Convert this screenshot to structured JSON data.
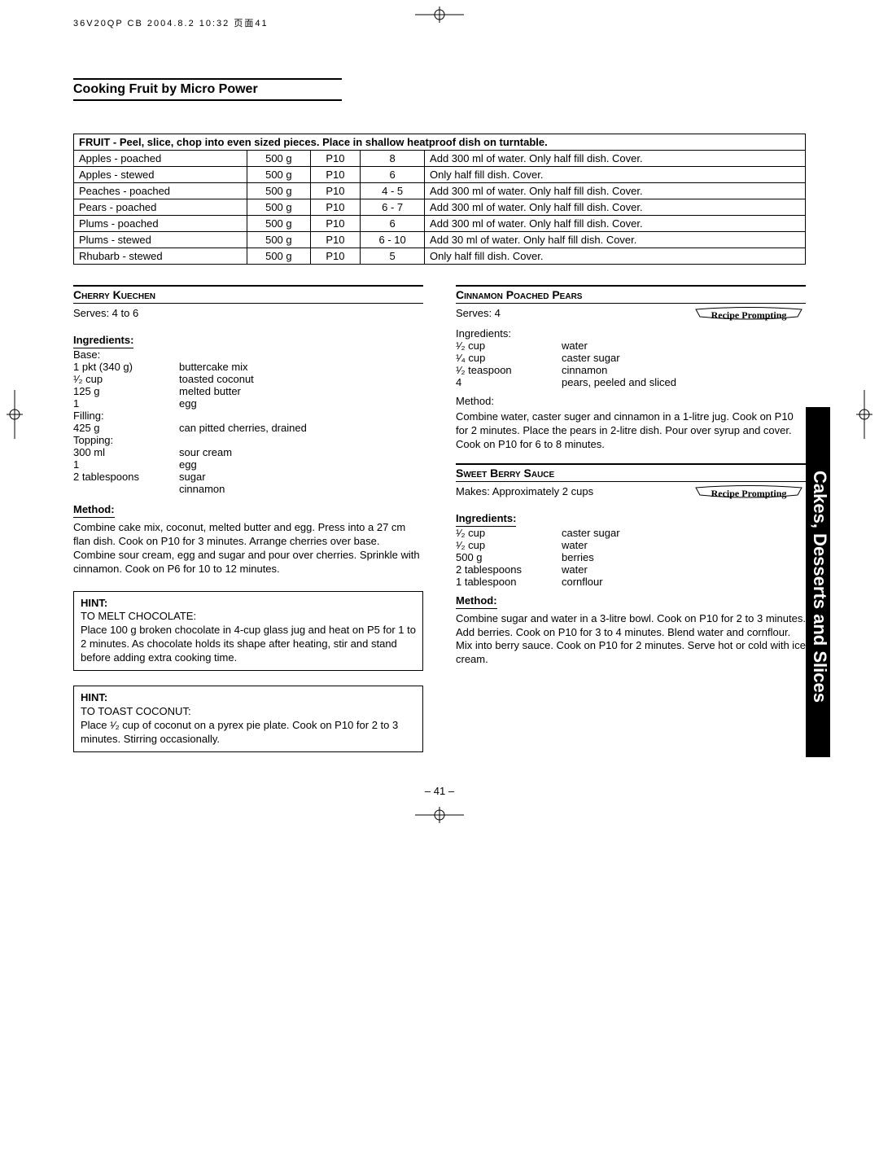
{
  "meta": {
    "header": "36V20QP CB  2004.8.2 10:32  页面41"
  },
  "section_title": "Cooking Fruit by Micro Power",
  "side_tab": "Cakes, Desserts and Slices",
  "page_number": "– 41 –",
  "fruit_table": {
    "instruction": "FRUIT - Peel, slice, chop into even sized pieces. Place in shallow heatproof dish on turntable.",
    "rows": [
      [
        "Apples - poached",
        "500 g",
        "P10",
        "8",
        "Add 300 ml of water. Only half fill dish. Cover."
      ],
      [
        "Apples - stewed",
        "500 g",
        "P10",
        "6",
        "Only half fill dish. Cover."
      ],
      [
        "Peaches - poached",
        "500 g",
        "P10",
        "4 - 5",
        "Add 300 ml of water. Only half fill dish. Cover."
      ],
      [
        "Pears - poached",
        "500 g",
        "P10",
        "6 - 7",
        "Add 300 ml of water. Only half fill dish. Cover."
      ],
      [
        "Plums - poached",
        "500 g",
        "P10",
        "6",
        "Add 300 ml of water. Only half fill dish. Cover."
      ],
      [
        "Plums - stewed",
        "500 g",
        "P10",
        "6 - 10",
        "Add 30 ml of water. Only half fill dish. Cover."
      ],
      [
        "Rhubarb - stewed",
        "500 g",
        "P10",
        "5",
        "Only half fill dish. Cover."
      ]
    ]
  },
  "recipes": {
    "cherry": {
      "title": "Cherry Kuechen",
      "serves": "Serves: 4 to 6",
      "ing_label": "Ingredients:",
      "groups": [
        {
          "label": "Base:",
          "items": [
            [
              "1 pkt (340 g)",
              "buttercake mix"
            ],
            [
              "¹⁄₂ cup",
              "toasted coconut"
            ],
            [
              "125 g",
              "melted butter"
            ],
            [
              "1",
              "egg"
            ]
          ]
        },
        {
          "label": "Filling:",
          "items": [
            [
              "425 g",
              "can pitted cherries, drained"
            ]
          ]
        },
        {
          "label": "Topping:",
          "items": [
            [
              "300 ml",
              "sour cream"
            ],
            [
              "1",
              "egg"
            ],
            [
              "2 tablespoons",
              "sugar"
            ],
            [
              "",
              "cinnamon"
            ]
          ]
        }
      ],
      "method_label": "Method:",
      "method": "Combine cake mix, coconut, melted butter and egg. Press into a 27 cm flan dish. Cook on P10 for 3 minutes. Arrange cherries over base. Combine sour cream, egg and sugar and pour over cherries. Sprinkle with cinnamon. Cook on P6 for 10 to 12 minutes."
    },
    "hints": [
      {
        "label": "HINT:",
        "title": "TO MELT CHOCOLATE:",
        "body": "Place 100 g broken chocolate in 4-cup glass jug and heat on P5 for 1 to 2 minutes. As chocolate holds its shape after heating, stir and stand before adding extra cooking time."
      },
      {
        "label": "HINT:",
        "title": "TO TOAST COCONUT:",
        "body": "Place ¹⁄₂ cup of coconut on a pyrex pie plate. Cook on P10 for 2 to 3 minutes. Stirring occasionally."
      }
    ],
    "cinnamon": {
      "title": "Cinnamon Poached Pears",
      "serves": "Serves: 4",
      "prompt": "Recipe Prompting",
      "ing_label": "Ingredients:",
      "items": [
        [
          "¹⁄₂ cup",
          "water"
        ],
        [
          "¹⁄₄ cup",
          "caster sugar"
        ],
        [
          "¹⁄₂ teaspoon",
          "cinnamon"
        ],
        [
          "4",
          "pears, peeled and sliced"
        ]
      ],
      "method_label": "Method:",
      "method": "Combine water, caster suger and cinnamon in a 1-litre jug. Cook on P10 for 2 minutes. Place the pears in 2-litre dish. Pour over syrup and cover. Cook on P10 for 6 to 8 minutes."
    },
    "berry": {
      "title": "Sweet Berry Sauce",
      "makes": "Makes: Approximately 2 cups",
      "prompt": "Recipe Prompting",
      "ing_label": "Ingredients:",
      "items": [
        [
          "¹⁄₂ cup",
          "caster sugar"
        ],
        [
          "¹⁄₂ cup",
          "water"
        ],
        [
          "500 g",
          "berries"
        ],
        [
          "2 tablespoons",
          "water"
        ],
        [
          "1 tablespoon",
          "cornflour"
        ]
      ],
      "method_label": "Method:",
      "method": "Combine sugar and water in a 3-litre bowl. Cook on P10 for 2 to 3 minutes. Add berries. Cook on P10 for 3 to 4 minutes. Blend water and cornflour. Mix into berry sauce. Cook on P10 for 2 minutes. Serve hot or cold with ice cream."
    }
  }
}
